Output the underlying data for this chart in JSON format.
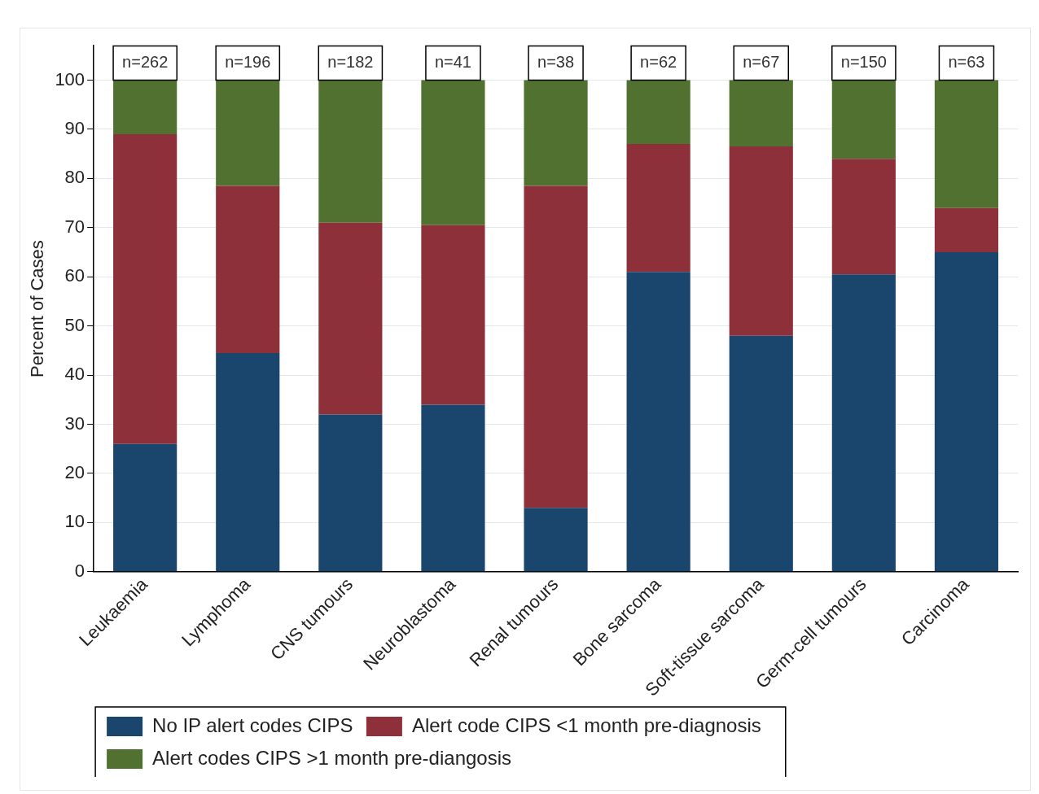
{
  "chart_data": {
    "type": "bar",
    "stacked": true,
    "ylabel": "Percent of Cases",
    "categories": [
      "Leukaemia",
      "Lymphoma",
      "CNS tumours",
      "Neuroblastoma",
      "Renal tumours",
      "Bone sarcoma",
      "Soft-tissue sarcoma",
      "Germ-cell tumours",
      "Carcinoma"
    ],
    "series": [
      {
        "name": "No IP alert codes CIPS",
        "color": "#1a466e",
        "values": [
          26,
          44.5,
          32,
          34,
          13,
          61,
          48,
          60.5,
          65
        ]
      },
      {
        "name": "Alert code CIPS <1 month pre-diagnosis",
        "color": "#8e3039",
        "values": [
          63,
          34,
          39,
          36.5,
          65.5,
          26,
          38.5,
          23.5,
          9
        ]
      },
      {
        "name": "Alert codes CIPS >1 month pre-diangosis",
        "color": "#50712f",
        "values": [
          11,
          21.5,
          29,
          29.5,
          21.5,
          13,
          13.5,
          16,
          26
        ]
      }
    ],
    "ylim": [
      0,
      107
    ],
    "yticks": [
      0,
      10,
      20,
      30,
      40,
      50,
      60,
      70,
      80,
      90,
      100
    ],
    "grid": "y",
    "legend": "bottom",
    "annotations": [
      {
        "text": "n=262",
        "x": "Leukaemia",
        "y": 100
      },
      {
        "text": "n=196",
        "x": "Lymphoma",
        "y": 100
      },
      {
        "text": "n=182",
        "x": "CNS tumours",
        "y": 100
      },
      {
        "text": "n=41",
        "x": "Neuroblastoma",
        "y": 100
      },
      {
        "text": "n=38",
        "x": "Renal tumours",
        "y": 100
      },
      {
        "text": "n=62",
        "x": "Bone sarcoma",
        "y": 100
      },
      {
        "text": "n=67",
        "x": "Soft-tissue sarcoma",
        "y": 100
      },
      {
        "text": "n=150",
        "x": "Germ-cell tumours",
        "y": 100
      },
      {
        "text": "n=63",
        "x": "Carcinoma",
        "y": 100
      }
    ]
  }
}
